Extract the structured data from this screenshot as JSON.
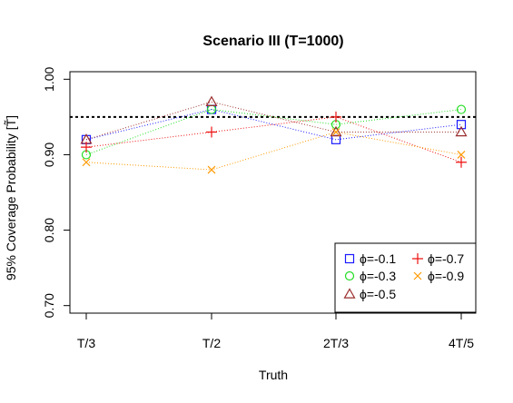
{
  "chart_data": {
    "type": "line",
    "title": "Scenario III (T=1000)",
    "xlabel": "Truth",
    "ylabel": "95% Coverage Probability [T̃]",
    "categories": [
      "T/3",
      "T/2",
      "2T/3",
      "4T/5"
    ],
    "ylim": [
      0.69,
      1.01
    ],
    "yticks": [
      0.7,
      0.8,
      0.9,
      1.0
    ],
    "ytick_labels": [
      "0.70",
      "0.80",
      "0.90",
      "1.00"
    ],
    "reference_line": 0.95,
    "legend_position": "bottom-right",
    "line_style": "dotted",
    "series": [
      {
        "name": "ϕ=-0.1",
        "color": "#1a1aff",
        "marker": "square",
        "values": [
          0.92,
          0.96,
          0.92,
          0.94
        ]
      },
      {
        "name": "ϕ=-0.3",
        "color": "#22dd22",
        "marker": "circle",
        "values": [
          0.9,
          0.96,
          0.94,
          0.96
        ]
      },
      {
        "name": "ϕ=-0.5",
        "color": "#9b2d2d",
        "marker": "triangle",
        "values": [
          0.92,
          0.97,
          0.93,
          0.93
        ]
      },
      {
        "name": "ϕ=-0.7",
        "color": "#ee1111",
        "marker": "plus",
        "values": [
          0.91,
          0.93,
          0.95,
          0.89
        ]
      },
      {
        "name": "ϕ=-0.9",
        "color": "#ff9900",
        "marker": "cross",
        "values": [
          0.89,
          0.88,
          0.93,
          0.9
        ]
      }
    ]
  }
}
